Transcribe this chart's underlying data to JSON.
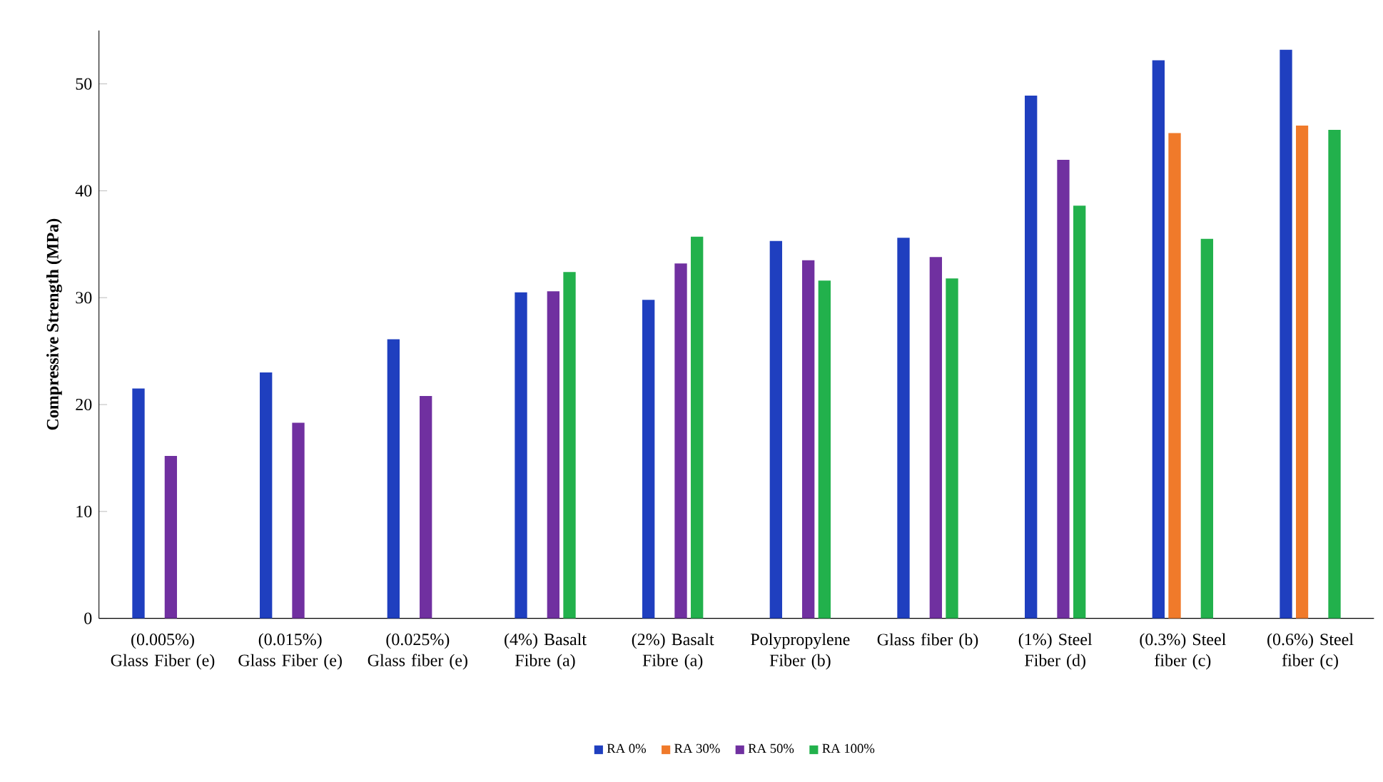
{
  "chart_data": {
    "type": "bar",
    "ylabel": "**Compressive Strength (MPa)**",
    "categories": [
      "(0.005%) Glass Fiber (e)",
      "(0.015%) Glass Fiber (e)",
      "(0.025%) Glass fiber (e)",
      "(4%) Basalt Fibre (a)",
      "(2%) Basalt Fibre (a)",
      "Polypropylene Fiber (b)",
      "Glass fiber (b)",
      "(1%) Steel Fiber (d)",
      "(0.3%) Steel fiber (c)",
      "(0.6%) Steel fiber (c)"
    ],
    "series": [
      {
        "name": "RA 0%",
        "color": "#1f3fbf",
        "values": [
          21.5,
          23.0,
          26.1,
          30.5,
          29.8,
          35.3,
          35.6,
          48.9,
          52.2,
          53.2
        ]
      },
      {
        "name": "RA 30%",
        "color": "#f07a2a",
        "values": [
          null,
          null,
          null,
          null,
          null,
          null,
          null,
          null,
          45.4,
          46.1
        ]
      },
      {
        "name": "RA 50%",
        "color": "#7030a0",
        "values": [
          15.2,
          18.3,
          20.8,
          30.6,
          33.2,
          33.5,
          33.8,
          42.9,
          null,
          null
        ]
      },
      {
        "name": "RA 100%",
        "color": "#22b14c",
        "values": [
          null,
          null,
          null,
          32.4,
          35.7,
          31.6,
          31.8,
          38.6,
          35.5,
          45.7
        ]
      }
    ],
    "ylim": [
      0,
      55
    ],
    "yticks": [
      0,
      10,
      20,
      30,
      40,
      50
    ],
    "legend": "bottom"
  }
}
